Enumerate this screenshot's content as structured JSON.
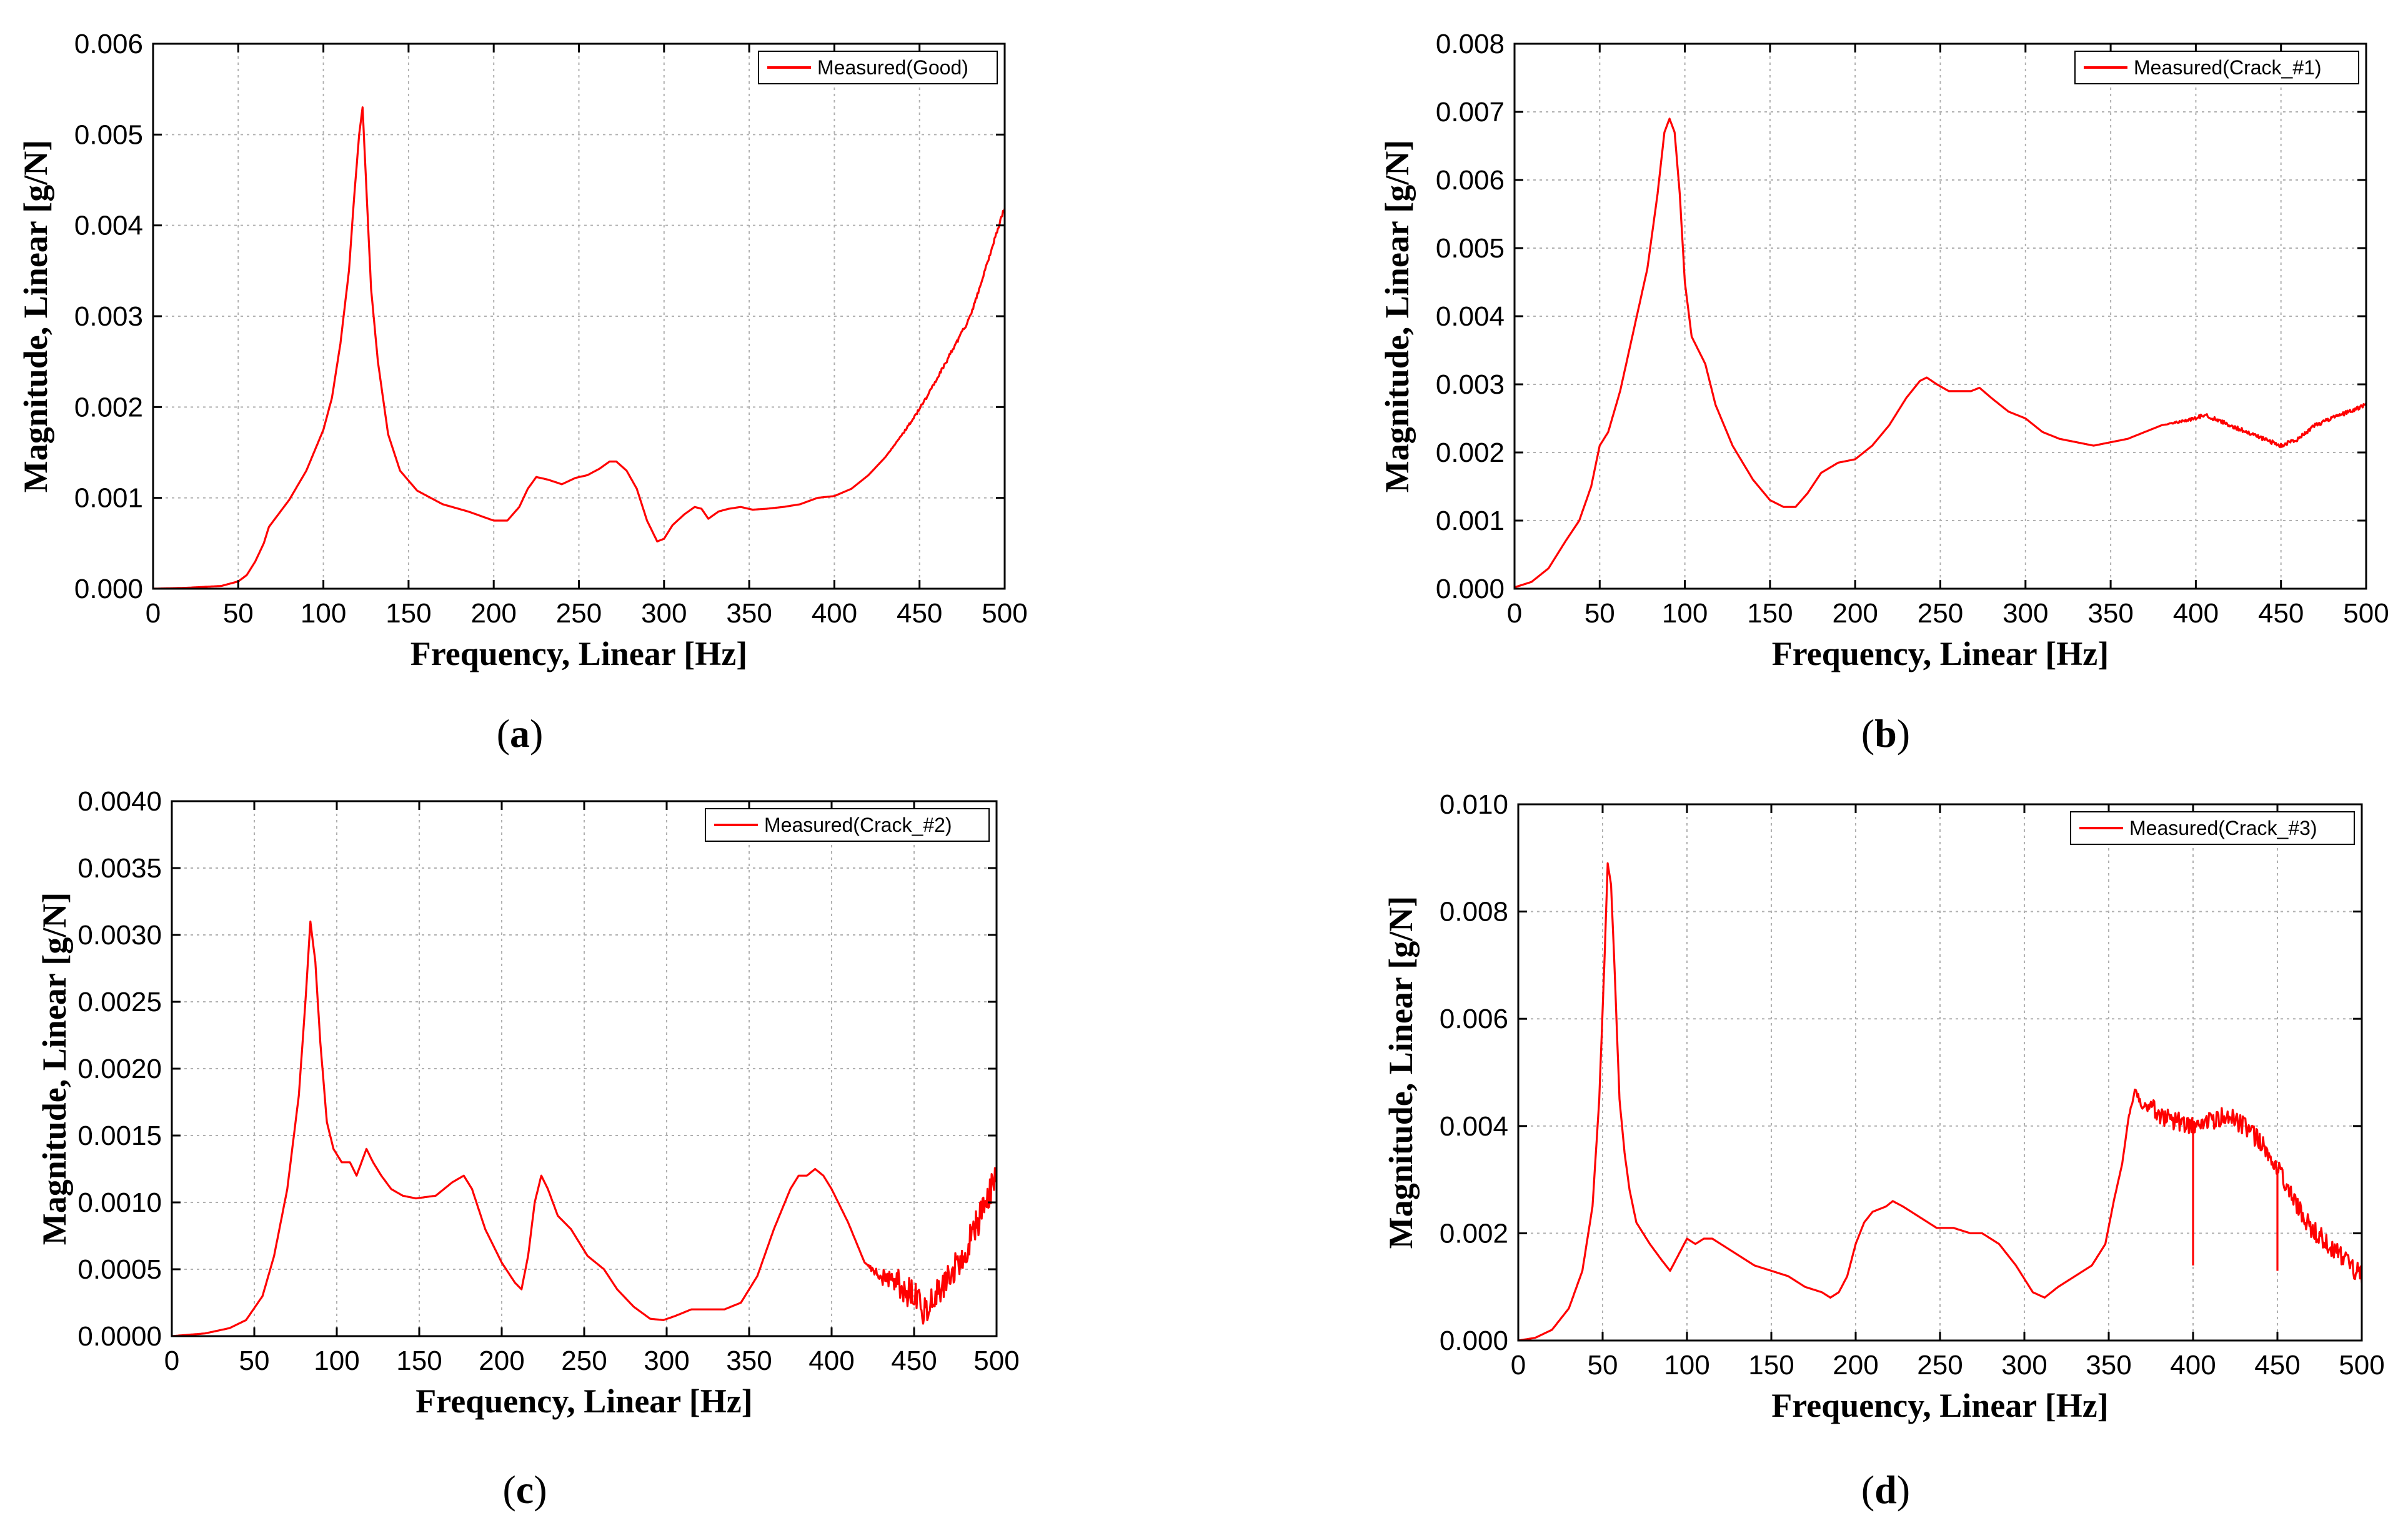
{
  "figure": {
    "series_color": "#ff0000",
    "grid_color": "#b0b0b0",
    "axis_color": "#000000"
  },
  "chart_data": [
    {
      "type": "line",
      "panel": "a",
      "caption_letter": "a",
      "xlabel": "Frequency, Linear [Hz]",
      "ylabel": "Magnitude, Linear [g/N]",
      "xlim": [
        0,
        500
      ],
      "ylim": [
        0,
        0.006
      ],
      "xticks": [
        0,
        50,
        100,
        150,
        200,
        250,
        300,
        350,
        400,
        450,
        500
      ],
      "yticks": [
        0,
        0.001,
        0.002,
        0.003,
        0.004,
        0.005,
        0.006
      ],
      "ytick_labels": [
        "0.000",
        "0.001",
        "0.002",
        "0.003",
        "0.004",
        "0.005",
        "0.006"
      ],
      "grid": true,
      "legend_position": "top-right",
      "series": [
        {
          "name": "Measured(Good)",
          "noise": 2e-05,
          "noise_from": 430,
          "x": [
            0,
            20,
            40,
            50,
            55,
            60,
            65,
            68,
            72,
            80,
            90,
            100,
            105,
            110,
            115,
            118,
            121,
            123,
            125,
            128,
            132,
            138,
            145,
            155,
            170,
            185,
            200,
            208,
            215,
            220,
            225,
            232,
            240,
            248,
            255,
            262,
            268,
            272,
            278,
            284,
            290,
            296,
            300,
            305,
            312,
            318,
            322,
            326,
            332,
            338,
            345,
            352,
            360,
            370,
            380,
            390,
            400,
            410,
            420,
            430,
            440,
            450,
            460,
            470,
            480,
            490,
            495,
            500
          ],
          "y": [
            0,
            1e-05,
            3e-05,
            8e-05,
            0.00015,
            0.0003,
            0.0005,
            0.00068,
            0.00078,
            0.00098,
            0.0013,
            0.00175,
            0.0021,
            0.0027,
            0.0035,
            0.0043,
            0.005,
            0.0053,
            0.0045,
            0.0033,
            0.0025,
            0.0017,
            0.0013,
            0.00108,
            0.00093,
            0.00085,
            0.00075,
            0.00075,
            0.0009,
            0.0011,
            0.00123,
            0.0012,
            0.00115,
            0.00122,
            0.00125,
            0.00132,
            0.0014,
            0.0014,
            0.0013,
            0.0011,
            0.00075,
            0.00052,
            0.00055,
            0.0007,
            0.00082,
            0.0009,
            0.00088,
            0.00077,
            0.00085,
            0.00088,
            0.0009,
            0.00087,
            0.00088,
            0.0009,
            0.00093,
            0.001,
            0.00102,
            0.0011,
            0.00125,
            0.00145,
            0.0017,
            0.00198,
            0.0023,
            0.00265,
            0.003,
            0.0036,
            0.0039,
            0.0042
          ]
        }
      ]
    },
    {
      "type": "line",
      "panel": "b",
      "caption_letter": "b",
      "xlabel": "Frequency, Linear [Hz]",
      "ylabel": "Magnitude, Linear [g/N]",
      "xlim": [
        0,
        500
      ],
      "ylim": [
        0,
        0.008
      ],
      "xticks": [
        0,
        50,
        100,
        150,
        200,
        250,
        300,
        350,
        400,
        450,
        500
      ],
      "yticks": [
        0,
        0.001,
        0.002,
        0.003,
        0.004,
        0.005,
        0.006,
        0.007,
        0.008
      ],
      "ytick_labels": [
        "0.000",
        "0.001",
        "0.002",
        "0.003",
        "0.004",
        "0.005",
        "0.006",
        "0.007",
        "0.008"
      ],
      "grid": true,
      "legend_position": "top-right",
      "series": [
        {
          "name": "Measured(Crack_#1)",
          "noise": 3e-05,
          "noise_from": 380,
          "x": [
            0,
            10,
            20,
            30,
            38,
            45,
            50,
            55,
            62,
            70,
            78,
            84,
            88,
            91,
            94,
            97,
            100,
            104,
            108,
            112,
            118,
            128,
            140,
            150,
            158,
            165,
            172,
            180,
            190,
            200,
            210,
            220,
            230,
            238,
            242,
            248,
            255,
            262,
            268,
            273,
            280,
            290,
            300,
            310,
            320,
            330,
            340,
            350,
            360,
            370,
            380,
            390,
            400,
            405,
            410,
            420,
            430,
            440,
            450,
            460,
            470,
            480,
            490,
            500
          ],
          "y": [
            2e-05,
            0.0001,
            0.0003,
            0.0007,
            0.001,
            0.0015,
            0.0021,
            0.0023,
            0.0029,
            0.0038,
            0.0047,
            0.0058,
            0.0067,
            0.0069,
            0.0067,
            0.0058,
            0.0045,
            0.0037,
            0.0035,
            0.0033,
            0.0027,
            0.0021,
            0.0016,
            0.0013,
            0.0012,
            0.0012,
            0.0014,
            0.0017,
            0.00185,
            0.0019,
            0.0021,
            0.0024,
            0.0028,
            0.00305,
            0.0031,
            0.003,
            0.0029,
            0.0029,
            0.0029,
            0.00295,
            0.0028,
            0.0026,
            0.0025,
            0.0023,
            0.0022,
            0.00215,
            0.0021,
            0.00215,
            0.0022,
            0.0023,
            0.0024,
            0.00245,
            0.0025,
            0.00255,
            0.0025,
            0.0024,
            0.0023,
            0.0022,
            0.0021,
            0.0022,
            0.0024,
            0.0025,
            0.0026,
            0.0027
          ]
        }
      ]
    },
    {
      "type": "line",
      "panel": "c",
      "caption_letter": "c",
      "xlabel": "Frequency, Linear [Hz]",
      "ylabel": "Magnitude, Linear [g/N]",
      "xlim": [
        0,
        500
      ],
      "ylim": [
        0,
        0.004
      ],
      "xticks": [
        0,
        50,
        100,
        150,
        200,
        250,
        300,
        350,
        400,
        450,
        500
      ],
      "yticks": [
        0,
        0.0005,
        0.001,
        0.0015,
        0.002,
        0.0025,
        0.003,
        0.0035,
        0.004
      ],
      "ytick_labels": [
        "0.0000",
        "0.0005",
        "0.0010",
        "0.0015",
        "0.0020",
        "0.0025",
        "0.0030",
        "0.0035",
        "0.0040"
      ],
      "grid": true,
      "legend_position": "top-right",
      "series": [
        {
          "name": "Measured(Crack_#2)",
          "noise": 0.00012,
          "noise_from": 420,
          "x": [
            0,
            20,
            35,
            45,
            55,
            62,
            70,
            77,
            81,
            84,
            87,
            90,
            94,
            98,
            103,
            108,
            112,
            115,
            118,
            122,
            127,
            133,
            140,
            148,
            160,
            170,
            177,
            182,
            190,
            200,
            208,
            212,
            216,
            220,
            224,
            228,
            234,
            242,
            252,
            262,
            270,
            280,
            290,
            298,
            305,
            315,
            325,
            335,
            345,
            355,
            365,
            375,
            380,
            385,
            390,
            395,
            400,
            410,
            420,
            430,
            440,
            450,
            455,
            460,
            470,
            480,
            490,
            500
          ],
          "y": [
            0,
            2e-05,
            6e-05,
            0.00012,
            0.0003,
            0.0006,
            0.0011,
            0.0018,
            0.0025,
            0.0031,
            0.0028,
            0.0022,
            0.0016,
            0.0014,
            0.0013,
            0.0013,
            0.0012,
            0.0013,
            0.0014,
            0.0013,
            0.0012,
            0.0011,
            0.00105,
            0.00103,
            0.00105,
            0.00115,
            0.0012,
            0.0011,
            0.0008,
            0.00055,
            0.0004,
            0.00035,
            0.0006,
            0.001,
            0.0012,
            0.0011,
            0.0009,
            0.0008,
            0.0006,
            0.0005,
            0.00035,
            0.00022,
            0.00013,
            0.00012,
            0.00015,
            0.0002,
            0.0002,
            0.0002,
            0.00025,
            0.00045,
            0.0008,
            0.0011,
            0.0012,
            0.0012,
            0.00125,
            0.0012,
            0.0011,
            0.00085,
            0.00055,
            0.00045,
            0.0004,
            0.0003,
            0.0002,
            0.00025,
            0.00045,
            0.0006,
            0.0009,
            0.0012
          ]
        }
      ]
    },
    {
      "type": "line",
      "panel": "d",
      "caption_letter": "d",
      "xlabel": "Frequency, Linear [Hz]",
      "ylabel": "Magnitude, Linear [g/N]",
      "xlim": [
        0,
        500
      ],
      "ylim": [
        0,
        0.01
      ],
      "xticks": [
        0,
        50,
        100,
        150,
        200,
        250,
        300,
        350,
        400,
        450,
        500
      ],
      "yticks": [
        0,
        0.002,
        0.004,
        0.006,
        0.008,
        0.01
      ],
      "ytick_labels": [
        "0.000",
        "0.002",
        "0.004",
        "0.006",
        "0.008",
        "0.010"
      ],
      "grid": true,
      "legend_position": "top-right",
      "spikes": [
        {
          "x": 400,
          "y": 0.0014
        },
        {
          "x": 450,
          "y": 0.0013
        }
      ],
      "series": [
        {
          "name": "Measured(Crack_#3)",
          "noise": 0.00018,
          "noise_from": 360,
          "x": [
            0,
            10,
            20,
            30,
            38,
            44,
            48,
            51,
            53,
            55,
            57,
            60,
            63,
            66,
            70,
            78,
            85,
            90,
            95,
            100,
            105,
            110,
            115,
            120,
            130,
            140,
            150,
            160,
            170,
            180,
            185,
            190,
            195,
            200,
            205,
            210,
            218,
            222,
            228,
            238,
            248,
            258,
            268,
            275,
            285,
            295,
            305,
            312,
            320,
            330,
            340,
            348,
            353,
            358,
            362,
            366,
            370,
            375,
            380,
            390,
            400,
            410,
            420,
            430,
            440,
            450,
            460,
            470,
            480,
            490,
            500
          ],
          "y": [
            0,
            5e-05,
            0.0002,
            0.0006,
            0.0013,
            0.0025,
            0.0045,
            0.007,
            0.0089,
            0.0085,
            0.007,
            0.0045,
            0.0035,
            0.0028,
            0.0022,
            0.0018,
            0.0015,
            0.0013,
            0.0016,
            0.0019,
            0.0018,
            0.0019,
            0.0019,
            0.0018,
            0.0016,
            0.0014,
            0.0013,
            0.0012,
            0.001,
            0.0009,
            0.0008,
            0.0009,
            0.0012,
            0.0018,
            0.0022,
            0.0024,
            0.0025,
            0.0026,
            0.0025,
            0.0023,
            0.0021,
            0.0021,
            0.002,
            0.002,
            0.0018,
            0.0014,
            0.0009,
            0.0008,
            0.001,
            0.0012,
            0.0014,
            0.0018,
            0.0026,
            0.0033,
            0.0042,
            0.0047,
            0.0043,
            0.0044,
            0.0042,
            0.0041,
            0.004,
            0.0041,
            0.0042,
            0.004,
            0.0037,
            0.0032,
            0.0026,
            0.0021,
            0.0018,
            0.0015,
            0.0012
          ]
        }
      ]
    }
  ]
}
